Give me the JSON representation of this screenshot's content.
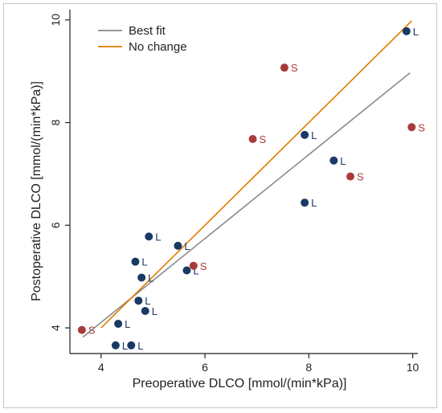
{
  "chart_data": {
    "type": "scatter",
    "xlabel": "Preoperative DLCO [mmol/(min*kPa)]",
    "ylabel": "Postoperative DLCO [mmol/(min*kPa)]",
    "xlim": [
      3.4,
      10.1
    ],
    "ylim": [
      3.5,
      10.2
    ],
    "xticks": [
      4,
      6,
      8,
      10
    ],
    "yticks": [
      4,
      6,
      8,
      10
    ],
    "grid": false,
    "legend": {
      "position": "top-left",
      "entries": [
        {
          "label": "Best fit",
          "color": "#8a8a8a"
        },
        {
          "label": "No change",
          "color": "#e07b00"
        }
      ]
    },
    "lines": {
      "best_fit": {
        "x": [
          3.65,
          9.95
        ],
        "y": [
          3.82,
          8.97
        ],
        "color": "#8a8a8a"
      },
      "no_change": {
        "x": [
          4.0,
          9.98
        ],
        "y": [
          4.0,
          9.98
        ],
        "color": "#e07b00"
      }
    },
    "series": [
      {
        "group": "L",
        "color": "#1a3a66",
        "points": [
          {
            "x": 9.88,
            "y": 9.78,
            "label": "L"
          },
          {
            "x": 7.92,
            "y": 7.76,
            "label": "L"
          },
          {
            "x": 8.48,
            "y": 7.26,
            "label": "L"
          },
          {
            "x": 7.92,
            "y": 6.44,
            "label": "L"
          },
          {
            "x": 4.92,
            "y": 5.78,
            "label": "L"
          },
          {
            "x": 5.48,
            "y": 5.6,
            "label": "L"
          },
          {
            "x": 4.66,
            "y": 5.29,
            "label": "L"
          },
          {
            "x": 5.65,
            "y": 5.12,
            "label": "L"
          },
          {
            "x": 4.78,
            "y": 4.98,
            "label": "L"
          },
          {
            "x": 4.72,
            "y": 4.53,
            "label": "L"
          },
          {
            "x": 4.85,
            "y": 4.33,
            "label": "L"
          },
          {
            "x": 4.33,
            "y": 4.08,
            "label": "L"
          },
          {
            "x": 4.28,
            "y": 3.66,
            "label": "L"
          },
          {
            "x": 4.58,
            "y": 3.66,
            "label": "L"
          }
        ]
      },
      {
        "group": "S",
        "color": "#a83a3a",
        "points": [
          {
            "x": 7.53,
            "y": 9.07,
            "label": "S"
          },
          {
            "x": 9.98,
            "y": 7.91,
            "label": "S"
          },
          {
            "x": 6.92,
            "y": 7.68,
            "label": "S"
          },
          {
            "x": 8.8,
            "y": 6.95,
            "label": "S"
          },
          {
            "x": 5.78,
            "y": 5.21,
            "label": "S"
          },
          {
            "x": 3.63,
            "y": 3.96,
            "label": "S"
          }
        ]
      }
    ]
  }
}
